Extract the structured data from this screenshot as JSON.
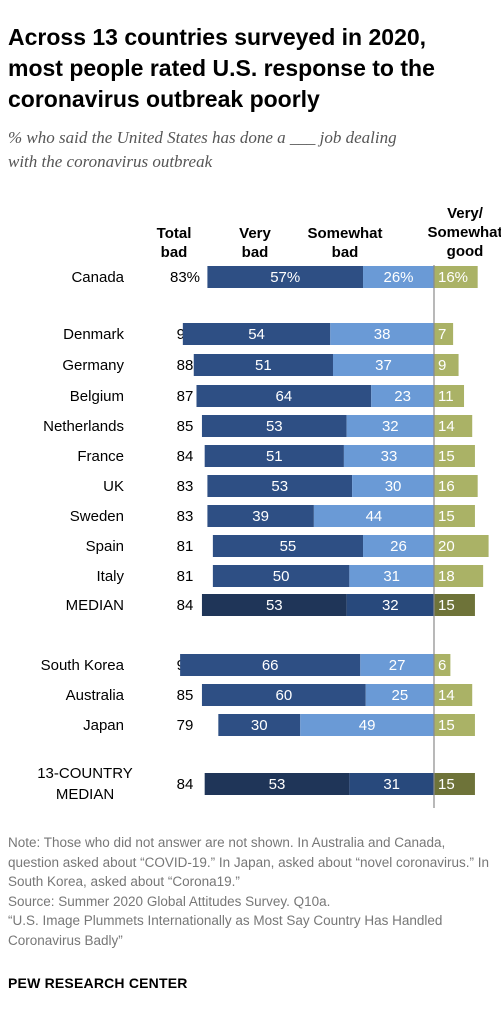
{
  "title": "Across 13 countries surveyed in 2020,\nmost people rated U.S. response to the\ncoronavirus outbreak poorly",
  "subtitle": "% who said the United States has done a ___ job dealing\nwith the coronavirus outbreak",
  "chart_data": {
    "type": "bar",
    "stacked": true,
    "orientation": "horizontal",
    "columns": {
      "total_bad": [
        "Total",
        "bad"
      ],
      "very_bad": [
        "Very",
        "bad"
      ],
      "somewhat_bad": [
        "Somewhat",
        "bad"
      ],
      "good": [
        "Very/",
        "Somewhat",
        "good"
      ]
    },
    "categories": [
      "Canada",
      "Denmark",
      "Germany",
      "Belgium",
      "Netherlands",
      "France",
      "UK",
      "Sweden",
      "Spain",
      "Italy",
      "MEDIAN",
      "South Korea",
      "Australia",
      "Japan",
      "13-COUNTRY\nMEDIAN"
    ],
    "total_bad": [
      83,
      92,
      88,
      87,
      85,
      84,
      83,
      83,
      81,
      81,
      84,
      93,
      85,
      79,
      84
    ],
    "series": [
      {
        "key": "very_bad",
        "values": [
          57,
          54,
          51,
          64,
          53,
          51,
          53,
          39,
          55,
          50,
          53,
          66,
          60,
          30,
          53
        ]
      },
      {
        "key": "somewhat_bad",
        "values": [
          26,
          38,
          37,
          23,
          32,
          33,
          30,
          44,
          26,
          31,
          32,
          27,
          25,
          49,
          31
        ]
      },
      {
        "key": "good",
        "values": [
          16,
          7,
          9,
          11,
          14,
          15,
          16,
          15,
          20,
          18,
          15,
          6,
          14,
          15,
          15
        ]
      }
    ],
    "percent_sign_rows": [
      0
    ],
    "median_rows": [
      10,
      14
    ],
    "colors": {
      "very_bad": "#2e4f84",
      "somewhat_bad": "#6a9ad6",
      "good": "#aab266",
      "very_bad_median": "#1f3558",
      "somewhat_bad_median": "#28497c",
      "good_median": "#6e7339",
      "divider": "#8a8a8a"
    }
  },
  "notes": [
    "Note: Those who did not answer are not shown. In Australia and Canada, question asked about “COVID-19.” In Japan, asked about “novel coronavirus.” In South Korea, asked about “Corona19.”",
    "Source: Summer 2020 Global Attitudes Survey. Q10a.",
    "“U.S. Image Plummets Internationally as Most Say Country Has Handled Coronavirus Badly”"
  ],
  "source_label": "PEW RESEARCH CENTER"
}
